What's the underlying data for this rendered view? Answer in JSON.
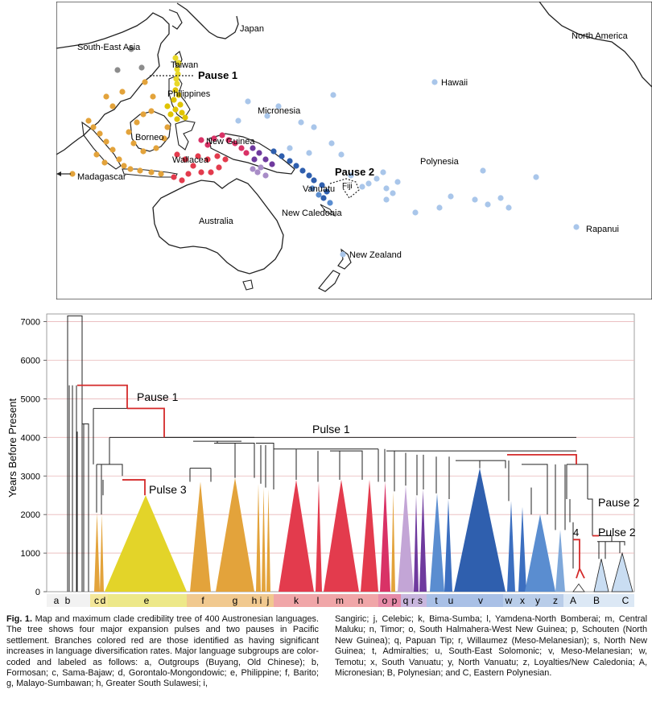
{
  "map": {
    "labels": {
      "japan": "Japan",
      "sea": "South-East Asia",
      "north_america": "North America",
      "taiwan": "Taiwan",
      "pause1": "Pause 1",
      "philippines": "Philippines",
      "hawaii": "Hawaii",
      "micronesia": "Micronesia",
      "borneo": "Borneo",
      "new_guinea": "New Guinea",
      "polynesia": "Polynesia",
      "wallacea": "Wallacea",
      "madagascar": "Madagascar",
      "pause2": "Pause 2",
      "fiji": "Fiji",
      "vanuatu": "Vanuatu",
      "new_caledonia": "New Caledonia",
      "australia": "Australia",
      "rapanui": "Rapanui",
      "new_zealand": "New Zealand"
    },
    "colors": {
      "outgroup": "#8c8c8c",
      "formosan": "#e8d829",
      "philippine": "#e0c400",
      "western": "#e3a33b",
      "wallacea": "#e33b4d",
      "new_guinea": "#d93266",
      "purple": "#6f3a9e",
      "lavender": "#a88cc7",
      "blue": "#2f5fae",
      "mid_blue": "#5a8dd0",
      "light_blue": "#a9c6ea"
    }
  },
  "chart_data": {
    "type": "tree",
    "ylabel": "Years Before Present",
    "ylim": [
      0,
      7200
    ],
    "yticks": [
      0,
      1000,
      2000,
      3000,
      4000,
      5000,
      6000,
      7000
    ],
    "annotations": [
      "Pause 1",
      "Pulse 1",
      "Pulse 3",
      "Pause 2",
      "Pulse 2",
      "4"
    ],
    "subgroup_letters": [
      "a",
      "b",
      "c",
      "d",
      "e",
      "f",
      "g",
      "h",
      "i",
      "j",
      "k",
      "l",
      "m",
      "n",
      "o",
      "p",
      "q",
      "r",
      "s",
      "t",
      "u",
      "v",
      "w",
      "x",
      "y",
      "z",
      "A",
      "B",
      "C"
    ],
    "clade_colors": {
      "f": "#e3a33b",
      "g": "#e3a33b",
      "h": "#e3a33b",
      "i": "#e3a33b",
      "j": "#e3a33b",
      "e": "#e3d429",
      "k": "#e33b4d",
      "l": "#e33b4d",
      "m": "#e33b4d",
      "n": "#e33b4d",
      "o": "#d93266",
      "q": "#c3a5d6",
      "r": "#6f3a9e",
      "s": "#6f3a9e",
      "t": "#5a8dd0",
      "u": "#3c6fc0",
      "v": "#2f5fae",
      "w": "#3c6fc0",
      "x": "#3c6fc0",
      "y": "#5a8dd0",
      "z": "#7fa8da",
      "A": "#ffffff",
      "B": "#c9ddf2",
      "C": "#c9ddf2"
    }
  },
  "caption": {
    "lead": "Fig. 1.",
    "left": " Map and maximum clade credibility tree of 400 Austronesian languages. The tree shows four major expansion pulses and two pauses in Pacific settlement. Branches colored red are those identified as having significant increases in language diversification rates. Major language subgroups are color-coded and labeled as follows: a, Outgroups (Buyang, Old Chinese); b, Formosan; c, Sama-Bajaw; d, Gorontalo-Mongondowic; e, Philippine; f, Barito; g, Malayo-Sumbawan; h, Greater South Sulawesi; i,",
    "right": "Sangiric; j, Celebic; k, Bima-Sumba; l, Yamdena-North Bomberai; m, Central Maluku; n, Timor; o, South Halmahera-West New Guinea; p, Schouten (North New Guinea); q, Papuan Tip; r, Willaumez (Meso-Melanesian); s, North New Guinea; t, Admiralties; u, South-East Solomonic; v, Meso-Melanesian; w, Temotu; x, South Vanuatu; y, North Vanuatu; z, Loyalties/New Caledonia; A, Micronesian; B, Polynesian; and C, Eastern Polynesian."
  }
}
